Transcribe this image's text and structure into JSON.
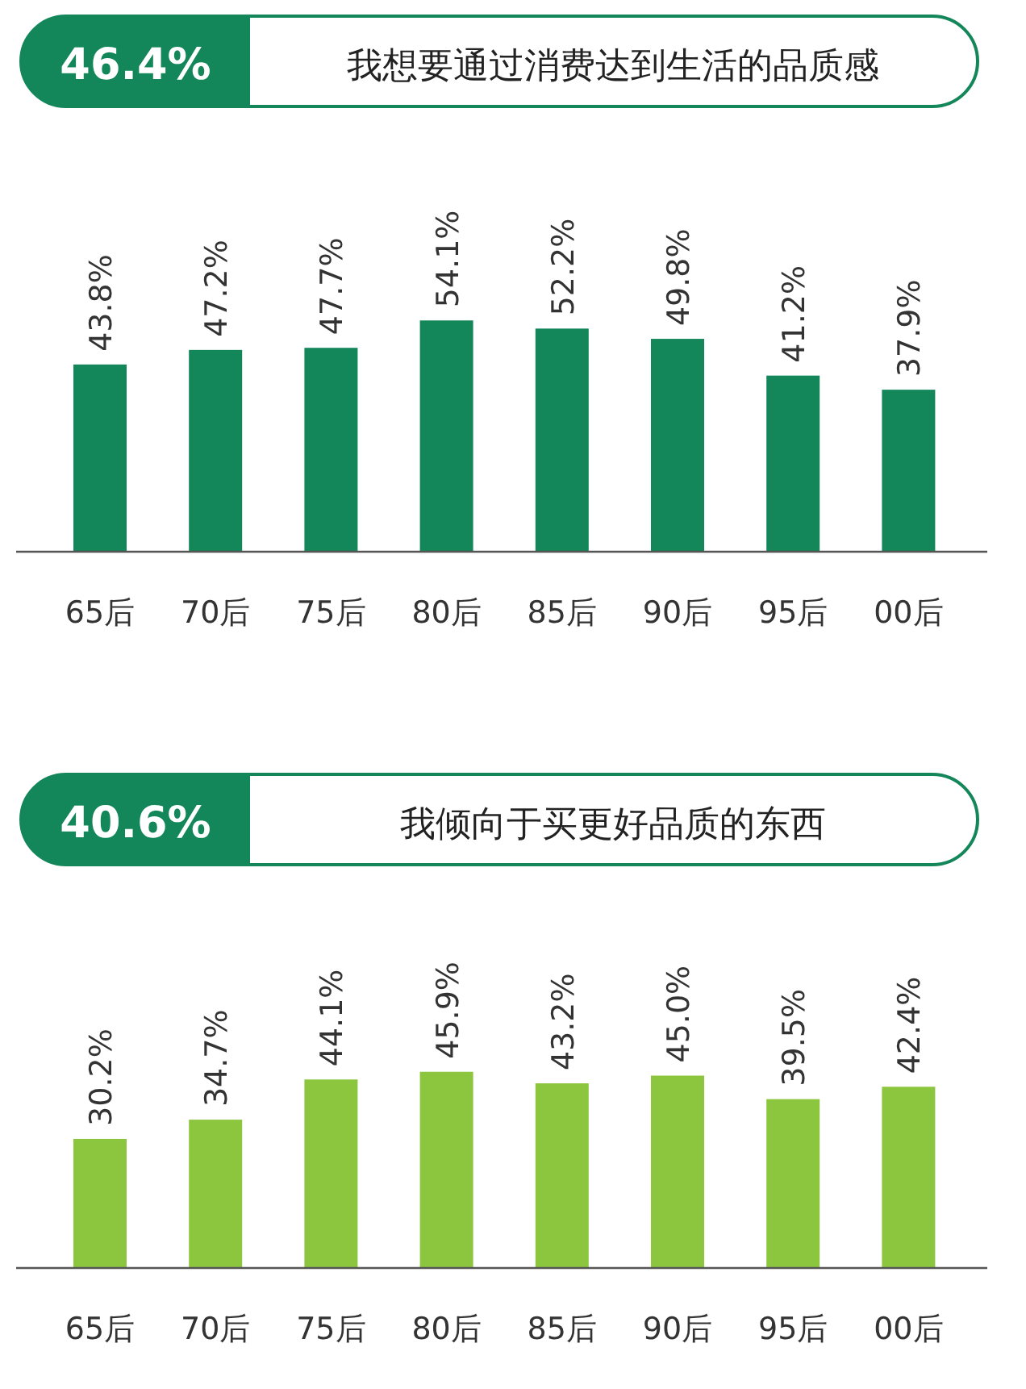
{
  "chart_data": [
    {
      "type": "bar",
      "title": "我想要通过消费达到生活的品质感",
      "annotations": [
        "46.4%"
      ],
      "categories": [
        "65后",
        "70后",
        "75后",
        "80后",
        "85后",
        "90后",
        "95后",
        "00后"
      ],
      "series": [
        {
          "color": "#14875a",
          "values": [
            43.8,
            47.2,
            47.7,
            54.1,
            52.2,
            49.8,
            41.2,
            37.9
          ],
          "value_labels": [
            "43.8%",
            "47.2%",
            "47.7%",
            "54.1%",
            "52.2%",
            "49.8%",
            "41.2%",
            "37.9%"
          ]
        }
      ]
    },
    {
      "type": "bar",
      "title": "我倾向于买更好品质的东西",
      "annotations": [
        "40.6%"
      ],
      "categories": [
        "65后",
        "70后",
        "75后",
        "80后",
        "85后",
        "90后",
        "95后",
        "00后"
      ],
      "series": [
        {
          "color": "#8cc63f",
          "values": [
            30.2,
            34.7,
            44.1,
            45.9,
            43.2,
            45.0,
            39.5,
            42.4
          ],
          "value_labels": [
            "30.2%",
            "34.7%",
            "44.1%",
            "45.9%",
            "43.2%",
            "45.0%",
            "39.5%",
            "42.4%"
          ]
        }
      ]
    }
  ]
}
